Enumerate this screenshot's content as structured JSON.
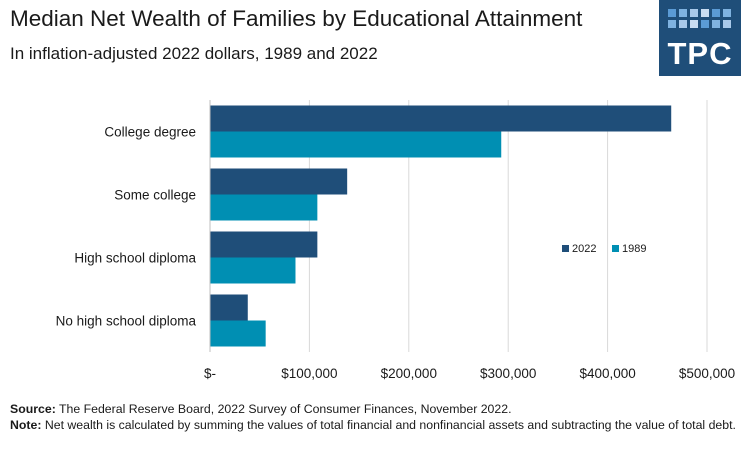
{
  "header": {
    "title": "Median Net Wealth of Families by Educational Attainment",
    "subtitle": "In inflation-adjusted 2022 dollars, 1989 and 2022"
  },
  "logo": {
    "text": "TPC",
    "background": "#1f4e79",
    "dot_colors": [
      "#5b9bd5",
      "#7fb2e0",
      "#a9c9ea",
      "#c8dcf1"
    ]
  },
  "chart_data": {
    "type": "bar",
    "orientation": "horizontal",
    "categories": [
      "College degree",
      "Some college",
      "High school diploma",
      "No high school diploma"
    ],
    "series": [
      {
        "name": "2022",
        "color": "#1f4e79",
        "values": [
          464000,
          138000,
          108000,
          38000
        ]
      },
      {
        "name": "1989",
        "color": "#008fb3",
        "values": [
          293000,
          108000,
          86000,
          56000
        ]
      }
    ],
    "xlim": [
      0,
      500000
    ],
    "x_ticks": [
      0,
      100000,
      200000,
      300000,
      400000,
      500000
    ],
    "x_tick_labels": [
      "$-",
      "$100,000",
      "$200,000",
      "$300,000",
      "$400,000",
      "$500,000"
    ],
    "grid": "vertical",
    "legend": "right"
  },
  "footer": {
    "source_label": "Source:",
    "source_text": "The Federal Reserve Board, 2022 Survey of Consumer Finances, November 2022.",
    "note_label": "Note:",
    "note_text": "Net wealth is calculated by summing the values of total financial and nonfinancial assets and subtracting the value of total debt."
  }
}
